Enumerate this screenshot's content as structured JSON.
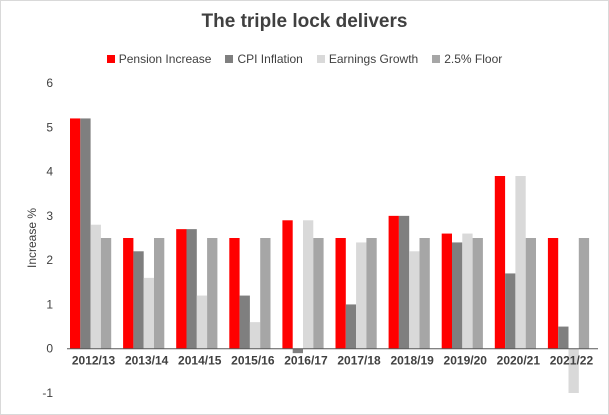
{
  "chart_data": {
    "type": "bar",
    "title": "The triple lock delivers",
    "xlabel": "",
    "ylabel": "Increase %",
    "ylim": [
      -1,
      6
    ],
    "yticks": [
      -1,
      0,
      1,
      2,
      3,
      4,
      5,
      6
    ],
    "grid": false,
    "legend_position": "top",
    "categories": [
      "2012/13",
      "2013/14",
      "2014/15",
      "2015/16",
      "2016/17",
      "2017/18",
      "2018/19",
      "2019/20",
      "2020/21",
      "2021/22"
    ],
    "series": [
      {
        "name": "Pension Increase",
        "color": "#ff0000",
        "values": [
          5.2,
          2.5,
          2.7,
          2.5,
          2.9,
          2.5,
          3.0,
          2.6,
          3.9,
          2.5
        ]
      },
      {
        "name": "CPI Inflation",
        "color": "#7f7f7f",
        "values": [
          5.2,
          2.2,
          2.7,
          1.2,
          -0.1,
          1.0,
          3.0,
          2.4,
          1.7,
          0.5
        ]
      },
      {
        "name": "Earnings Growth",
        "color": "#d9d9d9",
        "values": [
          2.8,
          1.6,
          1.2,
          0.6,
          2.9,
          2.4,
          2.2,
          2.6,
          3.9,
          -1.0
        ]
      },
      {
        "name": "2.5% Floor",
        "color": "#a6a6a6",
        "values": [
          2.5,
          2.5,
          2.5,
          2.5,
          2.5,
          2.5,
          2.5,
          2.5,
          2.5,
          2.5
        ]
      }
    ]
  }
}
